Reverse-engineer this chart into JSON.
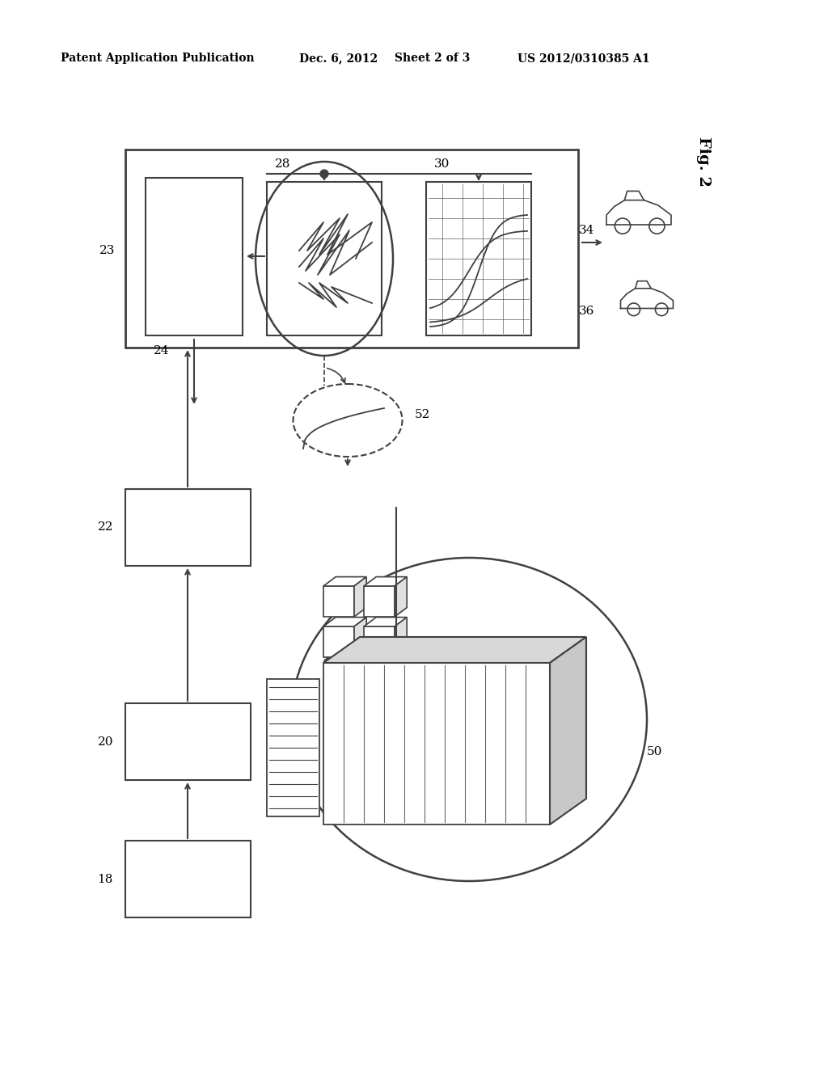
{
  "bg_color": "#ffffff",
  "lc": "#404040",
  "header_text": "Patent Application Publication",
  "header_date": "Dec. 6, 2012",
  "header_sheet": "Sheet 2 of 3",
  "header_patent": "US 2012/0310385 A1",
  "fig2_label": "Fig. 2"
}
